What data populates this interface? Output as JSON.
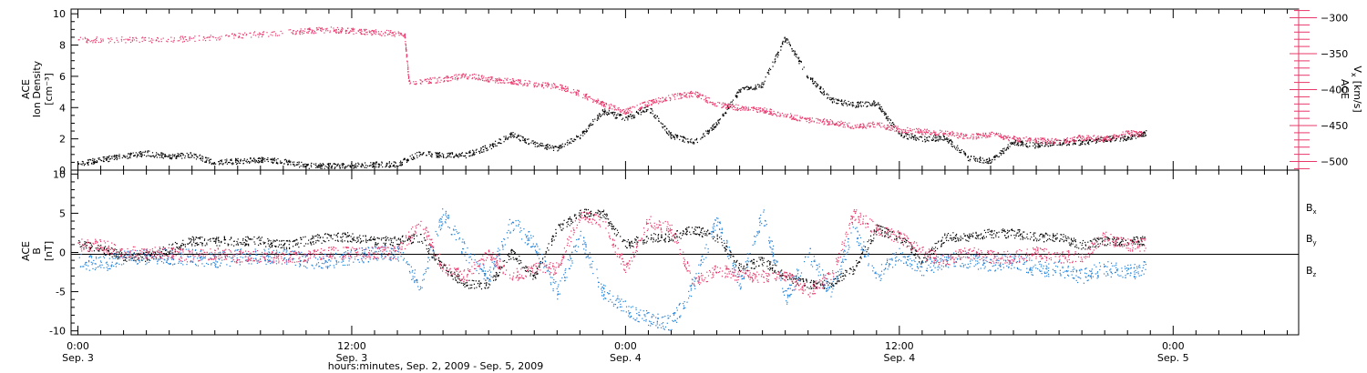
{
  "colors": {
    "density": "#000000",
    "vx": "#e8386a",
    "bx": "#000000",
    "by": "#1f7fd6",
    "bz": "#e8386a",
    "axis": "#000000"
  },
  "xlabel": "hours:minutes, Sep.  2, 2009 - Sep.  5, 2009",
  "x_ticks": [
    {
      "t": 0,
      "time": "0:00",
      "date": "Sep. 3"
    },
    {
      "t": 12,
      "time": "12:00",
      "date": "Sep. 3"
    },
    {
      "t": 24,
      "time": "0:00",
      "date": "Sep. 4"
    },
    {
      "t": 36,
      "time": "12:00",
      "date": "Sep. 4"
    },
    {
      "t": 48,
      "time": "0:00",
      "date": "Sep. 5"
    }
  ],
  "chart_data": [
    {
      "type": "scatter",
      "title": "",
      "xlim": [
        -0.3,
        53.5
      ],
      "left_axis": {
        "label_lines": [
          "ACE",
          "Ion Density"
        ],
        "unit": "[cm⁻³]",
        "ylim": [
          0,
          10.3
        ],
        "ticks": [
          0,
          2,
          4,
          6,
          8,
          10
        ]
      },
      "right_axis": {
        "label": "ACE",
        "sub": "V",
        "subscript": "x",
        "unit": "[km/s]",
        "ylim": [
          -512,
          -288
        ],
        "ticks": [
          -300,
          -350,
          -400,
          -450,
          -500
        ]
      },
      "series": [
        {
          "key": "density",
          "axis": "left",
          "color": "#000000",
          "points": [
            [
              0,
              0.4
            ],
            [
              1,
              0.7
            ],
            [
              2,
              0.9
            ],
            [
              3,
              1.1
            ],
            [
              4,
              0.9
            ],
            [
              5,
              1.0
            ],
            [
              6,
              0.5
            ],
            [
              7,
              0.6
            ],
            [
              8,
              0.7
            ],
            [
              9,
              0.6
            ],
            [
              10,
              0.3
            ],
            [
              11,
              0.3
            ],
            [
              12,
              0.3
            ],
            [
              13,
              0.4
            ],
            [
              14,
              0.4
            ],
            [
              15,
              1.1
            ],
            [
              16,
              1.0
            ],
            [
              17,
              1.0
            ],
            [
              18,
              1.5
            ],
            [
              19,
              2.3
            ],
            [
              20,
              1.7
            ],
            [
              21,
              1.4
            ],
            [
              22,
              2.2
            ],
            [
              23,
              3.8
            ],
            [
              24,
              3.3
            ],
            [
              25,
              4.0
            ],
            [
              26,
              2.2
            ],
            [
              27,
              1.8
            ],
            [
              28,
              3.0
            ],
            [
              29,
              5.1
            ],
            [
              30,
              5.5
            ],
            [
              31,
              8.5
            ],
            [
              32,
              6.0
            ],
            [
              33,
              4.5
            ],
            [
              34,
              4.2
            ],
            [
              35,
              4.3
            ],
            [
              36,
              2.3
            ],
            [
              37,
              2.0
            ],
            [
              38,
              2.1
            ],
            [
              39,
              0.8
            ],
            [
              40,
              0.6
            ],
            [
              41,
              1.8
            ],
            [
              42,
              1.6
            ],
            [
              43,
              1.8
            ],
            [
              44,
              1.8
            ],
            [
              45,
              2.0
            ],
            [
              46,
              2.1
            ],
            [
              46.8,
              2.4
            ]
          ]
        },
        {
          "key": "vx",
          "axis": "right",
          "color": "#e8386a",
          "points": [
            [
              0,
              -330
            ],
            [
              2,
              -330
            ],
            [
              4,
              -330
            ],
            [
              6,
              -327
            ],
            [
              8,
              -322
            ],
            [
              10,
              -318
            ],
            [
              11,
              -316
            ],
            [
              12,
              -318
            ],
            [
              13,
              -320
            ],
            [
              14.3,
              -322
            ],
            [
              14.5,
              -390
            ],
            [
              16,
              -385
            ],
            [
              17,
              -380
            ],
            [
              18,
              -385
            ],
            [
              19,
              -388
            ],
            [
              20,
              -392
            ],
            [
              21,
              -395
            ],
            [
              22,
              -405
            ],
            [
              23,
              -420
            ],
            [
              24,
              -430
            ],
            [
              25,
              -418
            ],
            [
              26,
              -410
            ],
            [
              27,
              -405
            ],
            [
              28,
              -420
            ],
            [
              29,
              -425
            ],
            [
              30,
              -428
            ],
            [
              31,
              -435
            ],
            [
              32,
              -442
            ],
            [
              33,
              -445
            ],
            [
              34,
              -450
            ],
            [
              35,
              -448
            ],
            [
              36,
              -455
            ],
            [
              37,
              -458
            ],
            [
              38,
              -460
            ],
            [
              39,
              -465
            ],
            [
              40,
              -462
            ],
            [
              41,
              -468
            ],
            [
              42,
              -470
            ],
            [
              43,
              -472
            ],
            [
              44,
              -466
            ],
            [
              45,
              -468
            ],
            [
              46,
              -460
            ],
            [
              46.8,
              -462
            ]
          ]
        }
      ]
    },
    {
      "type": "scatter",
      "title": "",
      "xlim": [
        -0.3,
        53.5
      ],
      "left_axis": {
        "label_lines": [
          "ACE",
          "B"
        ],
        "unit": "[nT]",
        "ylim": [
          -10.5,
          10.5
        ],
        "ticks": [
          -10,
          -5,
          0,
          5,
          10
        ]
      },
      "zero_line": true,
      "legend": {
        "position": "right",
        "entries": [
          {
            "key": "bx",
            "label": "B",
            "subscript": "x",
            "color": "#000000"
          },
          {
            "key": "by",
            "label": "B",
            "subscript": "y",
            "color": "#1f7fd6"
          },
          {
            "key": "bz",
            "label": "B",
            "subscript": "z",
            "color": "#e8386a"
          }
        ]
      },
      "series": [
        {
          "key": "bx",
          "color": "#000000",
          "points": [
            [
              0,
              1
            ],
            [
              1,
              0.5
            ],
            [
              2,
              -0.5
            ],
            [
              3,
              -0.5
            ],
            [
              4,
              0.5
            ],
            [
              5,
              1.5
            ],
            [
              6,
              1.5
            ],
            [
              7,
              1.5
            ],
            [
              8,
              1.5
            ],
            [
              9,
              1
            ],
            [
              10,
              1.5
            ],
            [
              11,
              2
            ],
            [
              12,
              2
            ],
            [
              13,
              1.5
            ],
            [
              14,
              1.5
            ],
            [
              15,
              2
            ],
            [
              16,
              -2
            ],
            [
              17,
              -4
            ],
            [
              18,
              -4
            ],
            [
              19,
              0
            ],
            [
              20,
              -3
            ],
            [
              21,
              3
            ],
            [
              22,
              5
            ],
            [
              23,
              5
            ],
            [
              24,
              1
            ],
            [
              25,
              2
            ],
            [
              26,
              2
            ],
            [
              27,
              3
            ],
            [
              28,
              2
            ],
            [
              29,
              -2
            ],
            [
              30,
              -1
            ],
            [
              31,
              -3
            ],
            [
              32,
              -4
            ],
            [
              33,
              -4
            ],
            [
              34,
              -2
            ],
            [
              35,
              3
            ],
            [
              36,
              2
            ],
            [
              37,
              -1
            ],
            [
              38,
              2
            ],
            [
              39,
              2
            ],
            [
              40,
              2.5
            ],
            [
              41,
              2.5
            ],
            [
              42,
              2
            ],
            [
              43,
              2
            ],
            [
              44,
              1
            ],
            [
              45,
              1.5
            ],
            [
              46,
              1.5
            ],
            [
              46.8,
              1.5
            ]
          ]
        },
        {
          "key": "by",
          "color": "#1f7fd6",
          "points": [
            [
              0,
              -1
            ],
            [
              1,
              -1.5
            ],
            [
              2,
              -0.5
            ],
            [
              3,
              -0.5
            ],
            [
              4,
              -0.5
            ],
            [
              5,
              -0.5
            ],
            [
              6,
              -1
            ],
            [
              7,
              -0.5
            ],
            [
              8,
              -0.5
            ],
            [
              9,
              -0.5
            ],
            [
              10,
              -1
            ],
            [
              11,
              -1
            ],
            [
              12,
              -0.5
            ],
            [
              13,
              0
            ],
            [
              14,
              0
            ],
            [
              15,
              -4
            ],
            [
              16,
              5
            ],
            [
              17,
              0
            ],
            [
              18,
              -3
            ],
            [
              19,
              4
            ],
            [
              20,
              1
            ],
            [
              21,
              -5
            ],
            [
              22,
              2
            ],
            [
              23,
              -5
            ],
            [
              24,
              -7
            ],
            [
              25,
              -8.5
            ],
            [
              26,
              -9
            ],
            [
              27,
              -4
            ],
            [
              28,
              4
            ],
            [
              29,
              -4
            ],
            [
              30,
              5
            ],
            [
              31,
              -6
            ],
            [
              32,
              0
            ],
            [
              33,
              -5
            ],
            [
              34,
              3
            ],
            [
              35,
              -3
            ],
            [
              36,
              0
            ],
            [
              37,
              -2
            ],
            [
              38,
              -1
            ],
            [
              39,
              -1
            ],
            [
              40,
              -1.5
            ],
            [
              41,
              -1
            ],
            [
              42,
              -2
            ],
            [
              43,
              -2
            ],
            [
              44,
              -3
            ],
            [
              45,
              -2
            ],
            [
              46,
              -2.5
            ],
            [
              46.8,
              -2
            ]
          ]
        },
        {
          "key": "bz",
          "color": "#e8386a",
          "points": [
            [
              0,
              1
            ],
            [
              1,
              1
            ],
            [
              2,
              0
            ],
            [
              3,
              0
            ],
            [
              4,
              0
            ],
            [
              5,
              -0.5
            ],
            [
              6,
              0
            ],
            [
              7,
              -0.5
            ],
            [
              8,
              -0.5
            ],
            [
              9,
              -0.5
            ],
            [
              10,
              -0.5
            ],
            [
              11,
              0
            ],
            [
              12,
              0
            ],
            [
              13,
              0
            ],
            [
              14,
              0
            ],
            [
              15,
              4
            ],
            [
              16,
              -2
            ],
            [
              17,
              -3
            ],
            [
              18,
              0
            ],
            [
              19,
              -3
            ],
            [
              20,
              -2
            ],
            [
              21,
              -2
            ],
            [
              22,
              5
            ],
            [
              23,
              4
            ],
            [
              24,
              -2
            ],
            [
              25,
              4
            ],
            [
              26,
              3
            ],
            [
              27,
              -4
            ],
            [
              28,
              -2
            ],
            [
              29,
              -3
            ],
            [
              30,
              -3
            ],
            [
              31,
              -3
            ],
            [
              32,
              -5
            ],
            [
              33,
              -3
            ],
            [
              34,
              5
            ],
            [
              35,
              3
            ],
            [
              36,
              2
            ],
            [
              37,
              0
            ],
            [
              38,
              -1
            ],
            [
              39,
              0
            ],
            [
              40,
              -0.5
            ],
            [
              41,
              -0.5
            ],
            [
              42,
              0
            ],
            [
              43,
              -0.5
            ],
            [
              44,
              -0.5
            ],
            [
              45,
              2
            ],
            [
              46,
              1
            ],
            [
              46.8,
              1
            ]
          ]
        }
      ]
    }
  ]
}
